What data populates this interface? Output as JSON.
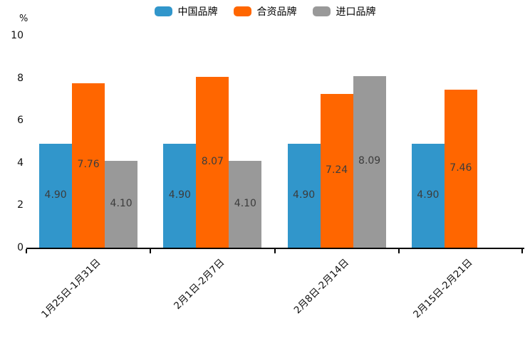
{
  "chart_data": {
    "type": "bar",
    "title": "",
    "xlabel": "",
    "ylabel": "%",
    "ylim": [
      0,
      10
    ],
    "yticks": [
      0,
      2,
      4,
      6,
      8,
      10
    ],
    "grid": false,
    "legend_position": "top-center",
    "categories": [
      "1月25日-1月31日",
      "2月1日-2月7日",
      "2月8日-2月14日",
      "2月15日-2月21日"
    ],
    "series": [
      {
        "name": "中国品牌",
        "color": "#3196cb",
        "values": [
          4.9,
          4.9,
          4.9,
          4.9
        ]
      },
      {
        "name": "合资品牌",
        "color": "#ff6600",
        "values": [
          7.76,
          8.07,
          7.24,
          7.46
        ]
      },
      {
        "name": "进口品牌",
        "color": "#999999",
        "values": [
          4.1,
          4.1,
          8.09,
          null
        ]
      }
    ],
    "value_label_decimals": 2,
    "axis_color": "#000000",
    "value_label_color": "#3c3c3c"
  }
}
